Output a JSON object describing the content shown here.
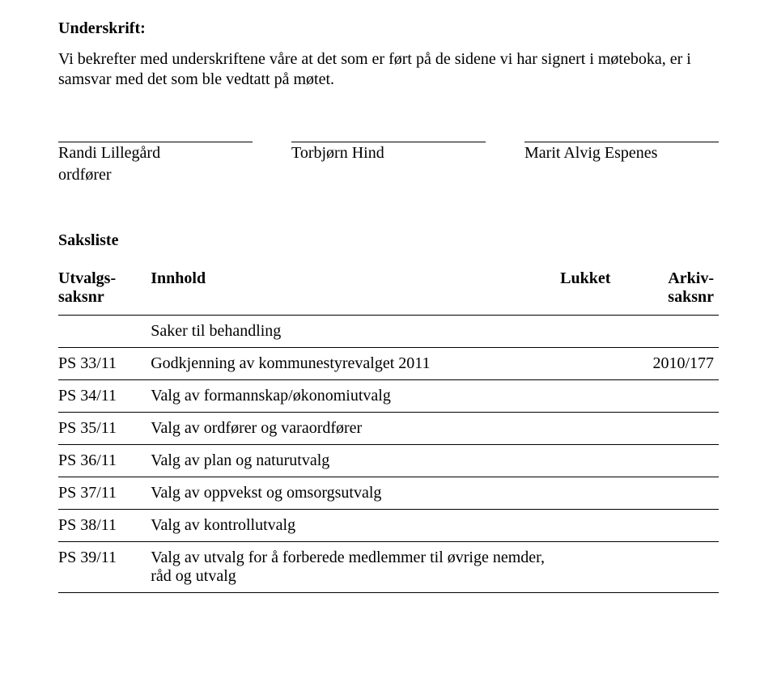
{
  "document": {
    "title": "Underskrift:",
    "intro": "Vi bekrefter med underskriftene våre at det som er ført på de sidene vi har signert i møteboka, er i samsvar med det som ble vedtatt på møtet.",
    "signatures": {
      "sig1_name": "Randi Lillegård",
      "sig1_role": "ordfører",
      "sig2_name": "Torbjørn Hind",
      "sig3_name": "Marit Alvig Espenes"
    },
    "saksliste_title": "Saksliste",
    "headers": {
      "utvalg": "Utvalgs-\nsaksnr",
      "innhold": "Innhold",
      "lukket": "Lukket",
      "arkiv": "Arkiv-\nsaksnr"
    },
    "saker_til_behandling": "Saker til behandling",
    "rows": [
      {
        "utv": "PS 33/11",
        "inn": "Godkjenning av kommunestyrevalget 2011",
        "ark": "2010/177"
      },
      {
        "utv": "PS 34/11",
        "inn": "Valg av formannskap/økonomiutvalg",
        "ark": ""
      },
      {
        "utv": "PS 35/11",
        "inn": "Valg av ordfører og varaordfører",
        "ark": ""
      },
      {
        "utv": "PS 36/11",
        "inn": "Valg av plan og naturutvalg",
        "ark": ""
      },
      {
        "utv": "PS 37/11",
        "inn": "Valg av oppvekst og omsorgsutvalg",
        "ark": ""
      },
      {
        "utv": "PS 38/11",
        "inn": "Valg av kontrollutvalg",
        "ark": ""
      },
      {
        "utv": "PS 39/11",
        "inn": "Valg av utvalg for å forberede medlemmer til øvrige nemder, råd og utvalg",
        "ark": ""
      }
    ]
  }
}
